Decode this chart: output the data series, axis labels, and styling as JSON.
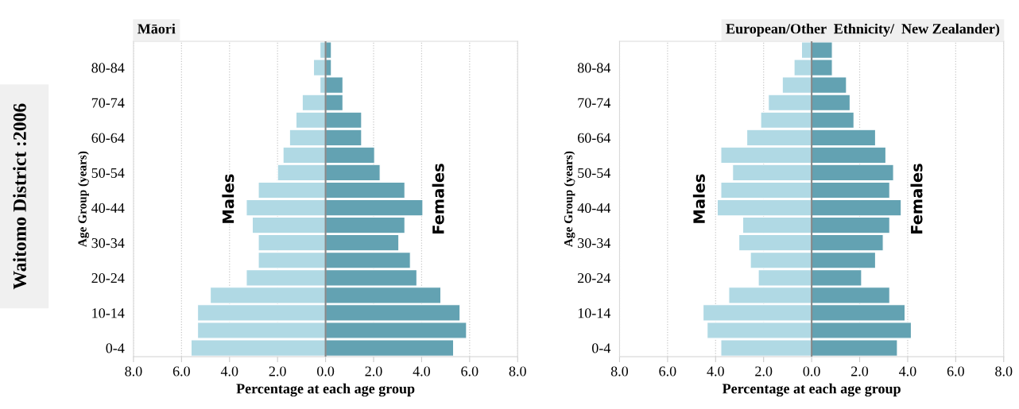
{
  "chart_data": [
    {
      "type": "bar",
      "orientation": "horizontal",
      "stacked": true,
      "title": "Māori",
      "xlabel": "Percentage at each age group",
      "ylabel": "Age Group (years)",
      "annotations": [
        "Waitomo District :2006"
      ],
      "categories": [
        null,
        "80-84",
        null,
        "70-74",
        null,
        "60-64",
        null,
        "50-54",
        null,
        "40-44",
        null,
        "30-34",
        null,
        "20-24",
        null,
        "10-14",
        null,
        "0-4"
      ],
      "series": [
        {
          "name": "Males",
          "color": "#b0d9e4",
          "values": [
            -0.23,
            -0.5,
            -0.23,
            -0.97,
            -1.23,
            -1.5,
            -1.77,
            -2.0,
            -2.8,
            -3.3,
            -3.05,
            -2.8,
            -2.8,
            -3.3,
            -4.8,
            -5.33,
            -5.33,
            -5.6
          ]
        },
        {
          "name": "Females",
          "color": "#63a2b2",
          "values": [
            0.24,
            0.24,
            0.72,
            0.72,
            1.5,
            1.5,
            2.04,
            2.27,
            3.3,
            4.05,
            3.3,
            3.05,
            3.53,
            3.8,
            4.8,
            5.6,
            5.87,
            5.33
          ]
        }
      ],
      "xlim": [
        -8,
        8
      ],
      "xticks": [
        {
          "value": -8,
          "label": "8.0"
        },
        {
          "value": -6,
          "label": "6.0"
        },
        {
          "value": -4,
          "label": "4.0"
        },
        {
          "value": -2,
          "label": "2.0"
        },
        {
          "value": 0,
          "label": "0.0"
        },
        {
          "value": 2,
          "label": "2.0"
        },
        {
          "value": 4,
          "label": "4.0"
        },
        {
          "value": 6,
          "label": "6.0"
        },
        {
          "value": 8,
          "label": "8.0"
        }
      ],
      "ref_lines": [
        {
          "axis": "x",
          "value": 0,
          "color": "#888888"
        }
      ],
      "grid": "x"
    },
    {
      "type": "bar",
      "orientation": "horizontal",
      "stacked": true,
      "title": "European/Other  Ethnicity/  New Zealander)",
      "xlabel": "Percentage at each age group",
      "ylabel": "Age Group (years)",
      "categories": [
        null,
        "80-84",
        null,
        "70-74",
        null,
        "60-64",
        null,
        "50-54",
        null,
        "40-44",
        null,
        "30-34",
        null,
        "20-24",
        null,
        "10-14",
        null,
        "0-4"
      ],
      "series": [
        {
          "name": "Males",
          "color": "#b0d9e4",
          "values": [
            -0.42,
            -0.73,
            -1.22,
            -1.8,
            -2.12,
            -2.7,
            -3.78,
            -3.29,
            -3.78,
            -3.93,
            -2.87,
            -3.03,
            -2.55,
            -2.22,
            -3.45,
            -4.52,
            -4.35,
            -3.78
          ]
        },
        {
          "name": "Females",
          "color": "#63a2b2",
          "values": [
            0.86,
            0.86,
            1.45,
            1.6,
            1.76,
            2.66,
            3.09,
            3.41,
            3.25,
            3.73,
            3.25,
            2.98,
            2.66,
            2.08,
            3.25,
            3.89,
            4.15,
            3.57
          ]
        }
      ],
      "xlim": [
        -8,
        8
      ],
      "xticks": [
        {
          "value": -8,
          "label": "8.0"
        },
        {
          "value": -6,
          "label": "6.0"
        },
        {
          "value": -4,
          "label": "4.0"
        },
        {
          "value": -2,
          "label": "2.0"
        },
        {
          "value": 0,
          "label": "0.0"
        },
        {
          "value": 2,
          "label": "2.0"
        },
        {
          "value": 4,
          "label": "4.0"
        },
        {
          "value": 6,
          "label": "6.0"
        },
        {
          "value": 8,
          "label": "8.0"
        }
      ],
      "ref_lines": [
        {
          "axis": "x",
          "value": 0,
          "color": "#888888"
        }
      ],
      "grid": "x"
    }
  ]
}
